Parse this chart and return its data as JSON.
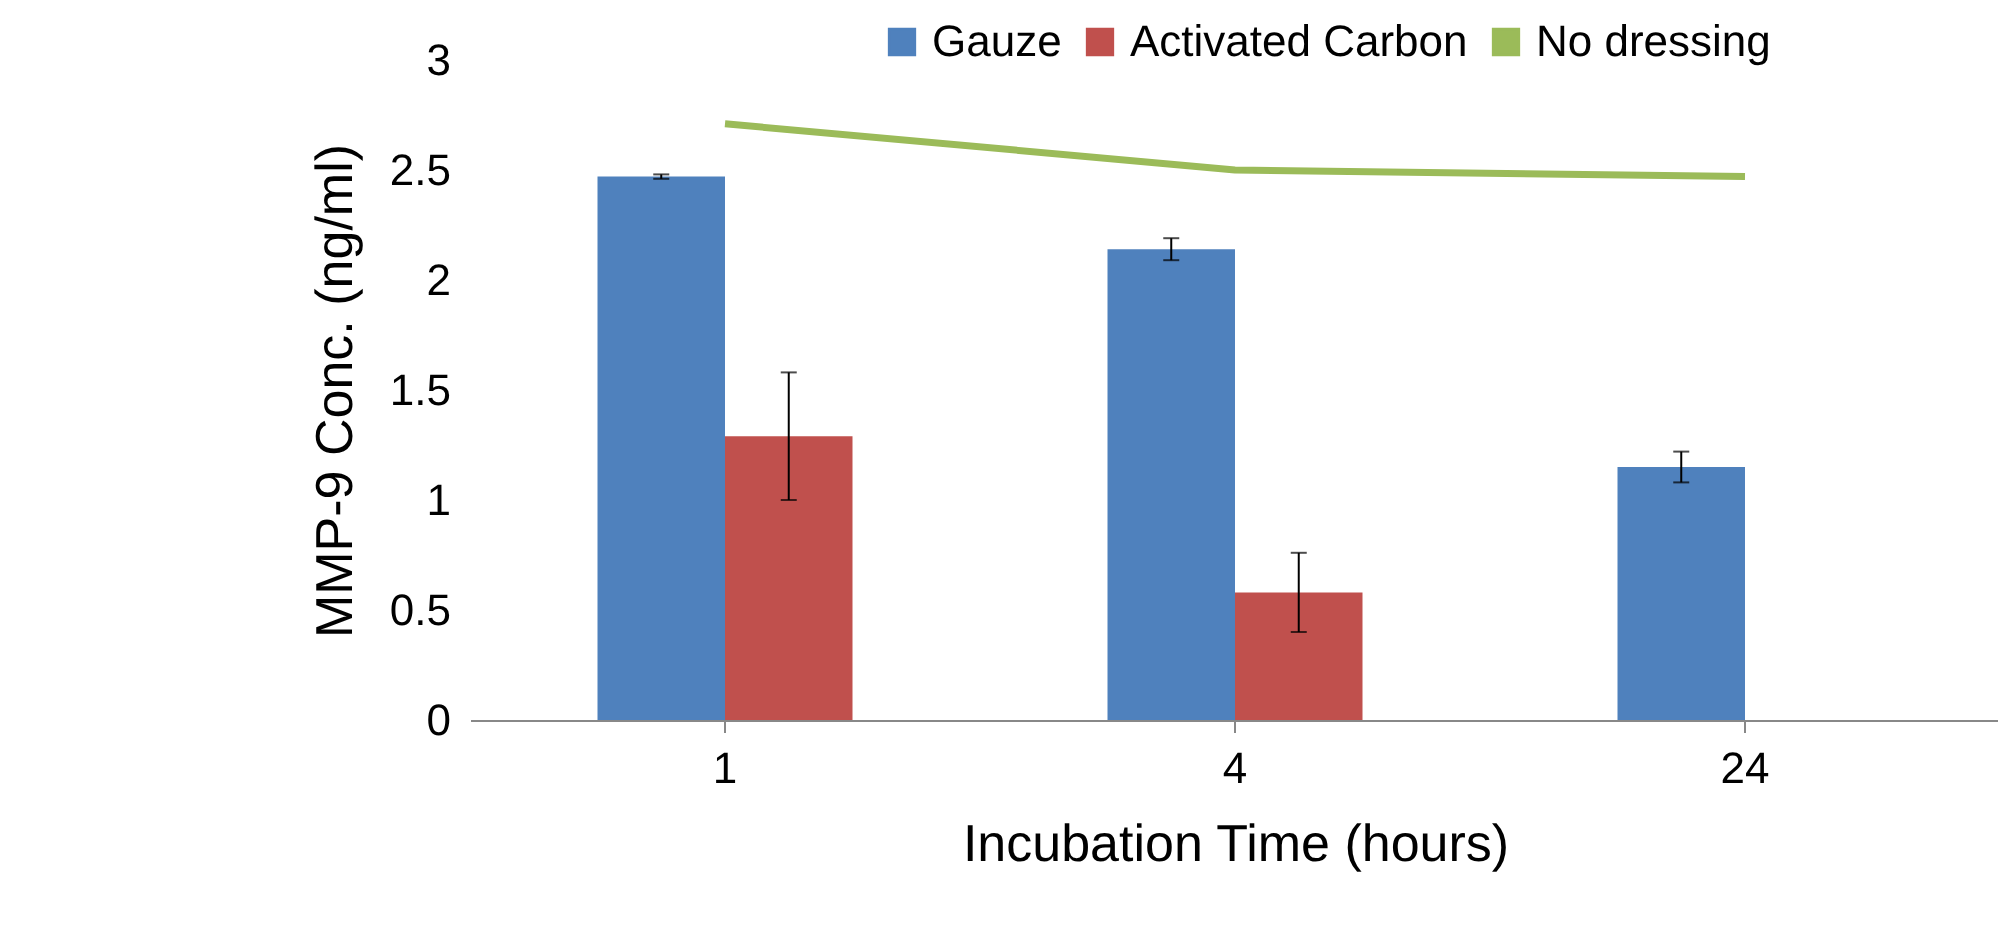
{
  "chart_data": {
    "type": "bar",
    "xlabel": "Incubation Time (hours)",
    "ylabel": "MMP-9 Conc. (ng/ml)",
    "categories": [
      "1",
      "4",
      "24"
    ],
    "series": [
      {
        "name": "Gauze",
        "color": "#4f81bd",
        "values": [
          2.47,
          2.14,
          1.15
        ],
        "errors": [
          0.01,
          0.05,
          0.07
        ]
      },
      {
        "name": "Activated Carbon",
        "color": "#c0504d",
        "values": [
          1.29,
          0.58,
          null
        ],
        "errors": [
          0.29,
          0.18,
          null
        ]
      },
      {
        "name": "No dressing",
        "type": "line",
        "color": "#9bbb59",
        "values": [
          2.71,
          2.5,
          2.47
        ]
      }
    ],
    "ylim": [
      0,
      3
    ],
    "yticks": [
      0,
      0.5,
      1,
      1.5,
      2,
      2.5,
      3
    ],
    "grid": false,
    "legend": "top right"
  }
}
